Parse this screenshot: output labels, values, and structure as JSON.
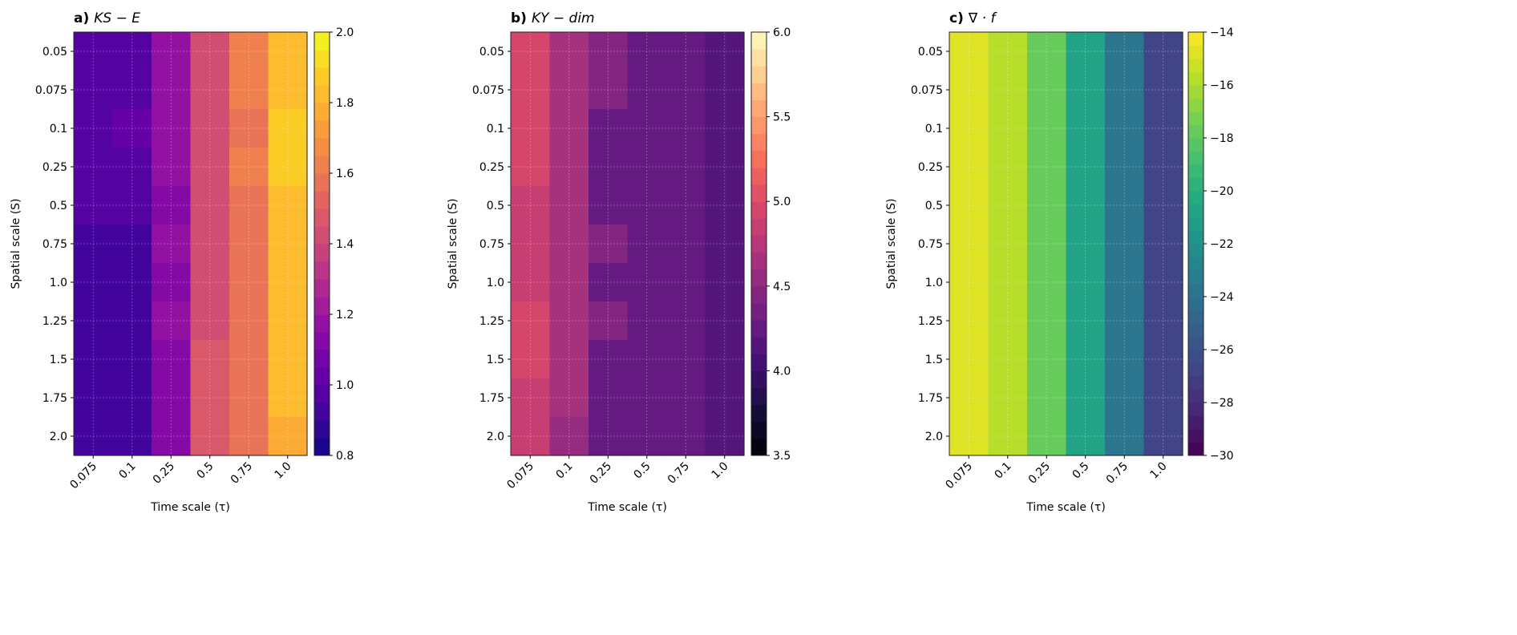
{
  "chart_data": [
    {
      "type": "heatmap",
      "panel": "a)",
      "title": "KS − E",
      "xlabel": "Time scale (τ)",
      "ylabel": "Spatial scale (S)",
      "x": [
        "0.075",
        "0.1",
        "0.25",
        "0.5",
        "0.75",
        "1.0"
      ],
      "y": [
        "0.05",
        "0.075",
        "0.1",
        "0.25",
        "0.5",
        "0.75",
        "1.0",
        "1.25",
        "1.5",
        "1.75",
        "2.0"
      ],
      "colormap": "plasma",
      "vlim": [
        0.8,
        2.0
      ],
      "levels": 24,
      "colorbar_ticks": [
        "0.8",
        "1.0",
        "1.2",
        "1.4",
        "1.6",
        "1.8",
        "2.0"
      ],
      "values": [
        [
          0.99,
          1.0,
          1.19,
          1.41,
          1.62,
          1.8
        ],
        [
          0.96,
          1.0,
          1.19,
          1.41,
          1.62,
          1.8
        ],
        [
          0.99,
          1.01,
          1.19,
          1.43,
          1.59,
          1.86
        ],
        [
          0.99,
          0.98,
          1.19,
          1.43,
          1.62,
          1.86
        ],
        [
          0.96,
          0.98,
          1.15,
          1.41,
          1.59,
          1.84
        ],
        [
          0.93,
          0.95,
          1.19,
          1.41,
          1.59,
          1.8
        ],
        [
          0.93,
          0.93,
          1.15,
          1.43,
          1.57,
          1.8
        ],
        [
          0.93,
          0.93,
          1.19,
          1.43,
          1.57,
          1.8
        ],
        [
          0.93,
          0.93,
          1.15,
          1.45,
          1.57,
          1.8
        ],
        [
          0.93,
          0.93,
          1.15,
          1.49,
          1.55,
          1.8
        ],
        [
          0.93,
          0.93,
          1.15,
          1.45,
          1.55,
          1.76
        ]
      ],
      "grid": true
    },
    {
      "type": "heatmap",
      "panel": "b)",
      "title": "KY − dim",
      "xlabel": "Time scale (τ)",
      "ylabel": "Spatial scale (S)",
      "x": [
        "0.075",
        "0.1",
        "0.25",
        "0.5",
        "0.75",
        "1.0"
      ],
      "y": [
        "0.05",
        "0.075",
        "0.1",
        "0.25",
        "0.5",
        "0.75",
        "1.0",
        "1.25",
        "1.5",
        "1.75",
        "2.0"
      ],
      "colormap": "magma",
      "vlim": [
        3.5,
        6.0
      ],
      "levels": 25,
      "colorbar_ticks": [
        "3.5",
        "4.0",
        "4.5",
        "5.0",
        "5.5",
        "6.0"
      ],
      "values": [
        [
          4.95,
          4.65,
          4.4,
          4.25,
          4.25,
          4.15
        ],
        [
          4.95,
          4.65,
          4.4,
          4.25,
          4.25,
          4.15
        ],
        [
          4.95,
          4.65,
          4.3,
          4.25,
          4.2,
          4.15
        ],
        [
          4.95,
          4.65,
          4.3,
          4.25,
          4.2,
          4.15
        ],
        [
          4.85,
          4.65,
          4.3,
          4.25,
          4.2,
          4.15
        ],
        [
          4.85,
          4.65,
          4.4,
          4.25,
          4.2,
          4.15
        ],
        [
          4.85,
          4.65,
          4.3,
          4.25,
          4.2,
          4.15
        ],
        [
          4.95,
          4.65,
          4.4,
          4.25,
          4.2,
          4.15
        ],
        [
          4.95,
          4.65,
          4.3,
          4.25,
          4.2,
          4.15
        ],
        [
          4.85,
          4.65,
          4.3,
          4.25,
          4.2,
          4.15
        ],
        [
          4.85,
          4.55,
          4.3,
          4.25,
          4.2,
          4.15
        ]
      ],
      "grid": true
    },
    {
      "type": "heatmap",
      "panel": "c)",
      "title": "∇ · f",
      "xlabel": "Time scale (τ)",
      "ylabel": "Spatial scale (S)",
      "x": [
        "0.075",
        "0.1",
        "0.25",
        "0.5",
        "0.75",
        "1.0"
      ],
      "y": [
        "0.05",
        "0.075",
        "0.1",
        "0.25",
        "0.5",
        "0.75",
        "1.0",
        "1.25",
        "1.5",
        "1.75",
        "2.0"
      ],
      "colormap": "viridis",
      "vlim": [
        -30,
        -14
      ],
      "levels": 32,
      "colorbar_ticks": [
        "−30",
        "−28",
        "−26",
        "−24",
        "−22",
        "−20",
        "−18",
        "−16",
        "−14"
      ],
      "values": [
        [
          -15,
          -16,
          -18,
          -21,
          -24,
          -27
        ],
        [
          -15,
          -16,
          -18,
          -21,
          -24,
          -27
        ],
        [
          -15,
          -16,
          -18,
          -21,
          -24,
          -27
        ],
        [
          -15,
          -16,
          -18,
          -21,
          -24,
          -27
        ],
        [
          -15,
          -16,
          -18,
          -21,
          -24,
          -27
        ],
        [
          -15,
          -16,
          -18,
          -21,
          -24,
          -27
        ],
        [
          -15,
          -16,
          -18,
          -21,
          -24,
          -27
        ],
        [
          -15,
          -16,
          -18,
          -21,
          -24,
          -27
        ],
        [
          -15,
          -16,
          -18,
          -21,
          -24,
          -27
        ],
        [
          -15,
          -16,
          -18,
          -21,
          -24,
          -27
        ],
        [
          -15,
          -16,
          -18,
          -21,
          -24,
          -27
        ]
      ],
      "grid": true
    }
  ]
}
